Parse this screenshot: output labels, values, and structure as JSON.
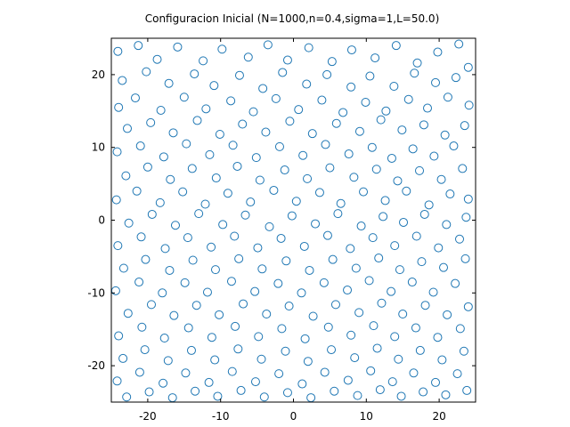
{
  "chart_data": {
    "type": "scatter",
    "title": "Configuracion Inicial (N=1000,n=0.4,sigma=1,L=50.0)",
    "xlabel": "",
    "ylabel": "",
    "xlim": [
      -25,
      25
    ],
    "ylim": [
      -25,
      25
    ],
    "xticks": [
      -20,
      -10,
      0,
      10,
      20
    ],
    "yticks": [
      -20,
      -10,
      0,
      10,
      20
    ],
    "xtick_labels": [
      "-20",
      "-10",
      "0",
      "10",
      "20"
    ],
    "ytick_labels": [
      "-20",
      "-10",
      "0",
      "10",
      "20"
    ],
    "grid": false,
    "marker": "open-circle",
    "marker_color": "#1f77b4",
    "n_points": 1000,
    "points_note": "",
    "series": [
      {
        "name": "",
        "points": [
          [
            -24.1,
            23.2
          ],
          [
            -21.3,
            24.0
          ],
          [
            -18.7,
            22.1
          ],
          [
            -15.9,
            23.8
          ],
          [
            -12.4,
            21.9
          ],
          [
            -9.8,
            23.5
          ],
          [
            -6.2,
            22.4
          ],
          [
            -3.5,
            24.1
          ],
          [
            -0.8,
            22.0
          ],
          [
            2.1,
            23.7
          ],
          [
            5.3,
            21.8
          ],
          [
            8.0,
            23.4
          ],
          [
            11.2,
            22.3
          ],
          [
            14.1,
            24.0
          ],
          [
            17.0,
            21.6
          ],
          [
            19.8,
            23.1
          ],
          [
            22.7,
            24.2
          ],
          [
            24.0,
            21.0
          ],
          [
            -23.5,
            19.2
          ],
          [
            -20.2,
            20.4
          ],
          [
            -17.1,
            18.8
          ],
          [
            -13.6,
            20.1
          ],
          [
            -10.9,
            18.5
          ],
          [
            -7.4,
            19.9
          ],
          [
            -4.2,
            18.1
          ],
          [
            -1.5,
            20.3
          ],
          [
            1.8,
            18.7
          ],
          [
            4.6,
            20.0
          ],
          [
            7.9,
            18.3
          ],
          [
            10.5,
            19.8
          ],
          [
            13.8,
            18.4
          ],
          [
            16.6,
            20.2
          ],
          [
            19.5,
            18.9
          ],
          [
            22.3,
            19.6
          ],
          [
            -24.0,
            15.5
          ],
          [
            -21.7,
            16.8
          ],
          [
            -18.2,
            15.1
          ],
          [
            -15.0,
            16.9
          ],
          [
            -12.0,
            15.3
          ],
          [
            -8.6,
            16.4
          ],
          [
            -5.5,
            14.9
          ],
          [
            -2.4,
            16.7
          ],
          [
            0.7,
            15.2
          ],
          [
            3.9,
            16.5
          ],
          [
            6.8,
            14.8
          ],
          [
            9.9,
            16.2
          ],
          [
            12.7,
            15.0
          ],
          [
            15.8,
            16.6
          ],
          [
            18.4,
            15.4
          ],
          [
            21.2,
            16.9
          ],
          [
            24.1,
            15.8
          ],
          [
            -22.8,
            12.6
          ],
          [
            -19.6,
            13.4
          ],
          [
            -16.5,
            12.0
          ],
          [
            -13.2,
            13.7
          ],
          [
            -10.1,
            11.8
          ],
          [
            -7.0,
            13.2
          ],
          [
            -3.8,
            12.1
          ],
          [
            -0.5,
            13.6
          ],
          [
            2.6,
            11.9
          ],
          [
            5.9,
            13.3
          ],
          [
            9.1,
            12.2
          ],
          [
            12.0,
            13.8
          ],
          [
            14.9,
            12.4
          ],
          [
            17.9,
            13.1
          ],
          [
            20.8,
            11.7
          ],
          [
            23.5,
            13.0
          ],
          [
            -24.2,
            9.4
          ],
          [
            -21.0,
            10.2
          ],
          [
            -17.8,
            8.7
          ],
          [
            -14.7,
            10.5
          ],
          [
            -11.5,
            9.0
          ],
          [
            -8.3,
            10.3
          ],
          [
            -5.1,
            8.6
          ],
          [
            -1.9,
            10.1
          ],
          [
            1.3,
            8.9
          ],
          [
            4.4,
            10.4
          ],
          [
            7.6,
            9.1
          ],
          [
            10.8,
            10.0
          ],
          [
            13.5,
            8.5
          ],
          [
            16.4,
            9.8
          ],
          [
            19.3,
            8.8
          ],
          [
            22.0,
            10.2
          ],
          [
            -23.0,
            6.1
          ],
          [
            -20.0,
            7.3
          ],
          [
            -16.9,
            5.6
          ],
          [
            -13.9,
            7.1
          ],
          [
            -10.6,
            5.8
          ],
          [
            -7.7,
            7.4
          ],
          [
            -4.6,
            5.5
          ],
          [
            -1.2,
            6.9
          ],
          [
            1.9,
            5.7
          ],
          [
            5.0,
            7.2
          ],
          [
            8.3,
            5.9
          ],
          [
            11.4,
            7.0
          ],
          [
            14.3,
            5.4
          ],
          [
            17.3,
            6.8
          ],
          [
            20.3,
            5.6
          ],
          [
            23.2,
            7.1
          ],
          [
            -24.3,
            2.8
          ],
          [
            -21.5,
            4.0
          ],
          [
            -18.3,
            2.4
          ],
          [
            -15.2,
            3.9
          ],
          [
            -12.1,
            2.2
          ],
          [
            -9.0,
            3.7
          ],
          [
            -5.9,
            2.5
          ],
          [
            -2.7,
            4.1
          ],
          [
            0.4,
            2.6
          ],
          [
            3.6,
            3.8
          ],
          [
            6.5,
            2.3
          ],
          [
            9.6,
            3.9
          ],
          [
            12.6,
            2.7
          ],
          [
            15.5,
            4.0
          ],
          [
            18.6,
            2.1
          ],
          [
            21.5,
            3.6
          ],
          [
            24.0,
            2.9
          ],
          [
            -22.6,
            -0.4
          ],
          [
            -19.4,
            0.8
          ],
          [
            -16.2,
            -0.7
          ],
          [
            -13.0,
            0.9
          ],
          [
            -9.7,
            -0.6
          ],
          [
            -6.6,
            0.7
          ],
          [
            -3.3,
            -0.9
          ],
          [
            -0.2,
            0.6
          ],
          [
            3.0,
            -0.5
          ],
          [
            6.1,
            0.9
          ],
          [
            9.3,
            -0.8
          ],
          [
            12.3,
            0.5
          ],
          [
            15.1,
            -0.3
          ],
          [
            18.0,
            0.8
          ],
          [
            21.0,
            -0.6
          ],
          [
            23.7,
            0.4
          ],
          [
            -24.1,
            -3.5
          ],
          [
            -20.9,
            -2.3
          ],
          [
            -17.6,
            -3.9
          ],
          [
            -14.5,
            -2.4
          ],
          [
            -11.3,
            -3.7
          ],
          [
            -8.1,
            -2.2
          ],
          [
            -4.9,
            -3.8
          ],
          [
            -1.7,
            -2.5
          ],
          [
            1.5,
            -3.6
          ],
          [
            4.7,
            -2.1
          ],
          [
            7.8,
            -3.9
          ],
          [
            10.9,
            -2.4
          ],
          [
            13.9,
            -3.5
          ],
          [
            16.9,
            -2.2
          ],
          [
            19.9,
            -3.8
          ],
          [
            22.8,
            -2.6
          ],
          [
            -23.3,
            -6.6
          ],
          [
            -20.3,
            -5.4
          ],
          [
            -17.0,
            -6.9
          ],
          [
            -13.8,
            -5.5
          ],
          [
            -10.7,
            -6.8
          ],
          [
            -7.5,
            -5.3
          ],
          [
            -4.3,
            -6.7
          ],
          [
            -1.0,
            -5.6
          ],
          [
            2.2,
            -6.9
          ],
          [
            5.4,
            -5.4
          ],
          [
            8.6,
            -6.6
          ],
          [
            11.7,
            -5.2
          ],
          [
            14.6,
            -6.8
          ],
          [
            17.6,
            -5.7
          ],
          [
            20.6,
            -6.5
          ],
          [
            23.6,
            -5.3
          ],
          [
            -24.4,
            -9.7
          ],
          [
            -21.2,
            -8.5
          ],
          [
            -18.0,
            -10.0
          ],
          [
            -14.9,
            -8.6
          ],
          [
            -11.8,
            -9.9
          ],
          [
            -8.5,
            -8.4
          ],
          [
            -5.3,
            -9.8
          ],
          [
            -2.1,
            -8.7
          ],
          [
            1.1,
            -10.0
          ],
          [
            4.2,
            -8.6
          ],
          [
            7.4,
            -9.6
          ],
          [
            10.4,
            -8.3
          ],
          [
            13.4,
            -9.8
          ],
          [
            16.3,
            -8.5
          ],
          [
            19.2,
            -9.9
          ],
          [
            22.2,
            -8.7
          ],
          [
            -22.7,
            -12.8
          ],
          [
            -19.5,
            -11.6
          ],
          [
            -16.4,
            -13.1
          ],
          [
            -13.3,
            -11.7
          ],
          [
            -10.2,
            -13.0
          ],
          [
            -6.9,
            -11.5
          ],
          [
            -3.7,
            -12.9
          ],
          [
            -0.6,
            -11.8
          ],
          [
            2.7,
            -13.2
          ],
          [
            5.8,
            -11.6
          ],
          [
            9.0,
            -12.7
          ],
          [
            12.1,
            -11.4
          ],
          [
            15.0,
            -12.9
          ],
          [
            18.1,
            -11.7
          ],
          [
            21.1,
            -13.0
          ],
          [
            24.0,
            -11.9
          ],
          [
            -24.0,
            -15.9
          ],
          [
            -20.8,
            -14.7
          ],
          [
            -17.7,
            -16.2
          ],
          [
            -14.4,
            -14.8
          ],
          [
            -11.2,
            -16.1
          ],
          [
            -8.0,
            -14.6
          ],
          [
            -4.8,
            -16.0
          ],
          [
            -1.6,
            -14.9
          ],
          [
            1.6,
            -16.3
          ],
          [
            4.8,
            -14.7
          ],
          [
            7.9,
            -15.8
          ],
          [
            11.0,
            -14.5
          ],
          [
            13.9,
            -16.0
          ],
          [
            16.8,
            -14.8
          ],
          [
            19.8,
            -16.1
          ],
          [
            22.9,
            -14.9
          ],
          [
            -23.4,
            -19.0
          ],
          [
            -20.4,
            -17.8
          ],
          [
            -17.2,
            -19.3
          ],
          [
            -14.0,
            -17.9
          ],
          [
            -10.8,
            -19.2
          ],
          [
            -7.6,
            -17.7
          ],
          [
            -4.4,
            -19.1
          ],
          [
            -1.1,
            -18.0
          ],
          [
            2.0,
            -19.4
          ],
          [
            5.2,
            -17.8
          ],
          [
            8.4,
            -18.9
          ],
          [
            11.5,
            -17.6
          ],
          [
            14.4,
            -19.1
          ],
          [
            17.4,
            -17.9
          ],
          [
            20.4,
            -19.2
          ],
          [
            23.4,
            -18.0
          ],
          [
            -24.2,
            -22.1
          ],
          [
            -21.1,
            -20.9
          ],
          [
            -17.9,
            -22.4
          ],
          [
            -14.8,
            -21.0
          ],
          [
            -11.6,
            -22.3
          ],
          [
            -8.4,
            -20.8
          ],
          [
            -5.2,
            -22.2
          ],
          [
            -2.0,
            -21.1
          ],
          [
            1.2,
            -22.5
          ],
          [
            4.3,
            -20.9
          ],
          [
            7.5,
            -22.0
          ],
          [
            10.6,
            -20.7
          ],
          [
            13.6,
            -22.2
          ],
          [
            16.5,
            -21.0
          ],
          [
            19.5,
            -22.3
          ],
          [
            22.5,
            -21.1
          ],
          [
            -22.9,
            -24.3
          ],
          [
            -19.8,
            -23.6
          ],
          [
            -16.6,
            -24.4
          ],
          [
            -13.5,
            -23.5
          ],
          [
            -10.4,
            -24.2
          ],
          [
            -7.2,
            -23.4
          ],
          [
            -4.0,
            -24.3
          ],
          [
            -0.8,
            -23.7
          ],
          [
            2.4,
            -24.4
          ],
          [
            5.6,
            -23.5
          ],
          [
            8.8,
            -24.1
          ],
          [
            11.9,
            -23.3
          ],
          [
            14.8,
            -24.2
          ],
          [
            17.8,
            -23.6
          ],
          [
            20.9,
            -24.0
          ],
          [
            23.8,
            -23.4
          ]
        ]
      }
    ]
  }
}
